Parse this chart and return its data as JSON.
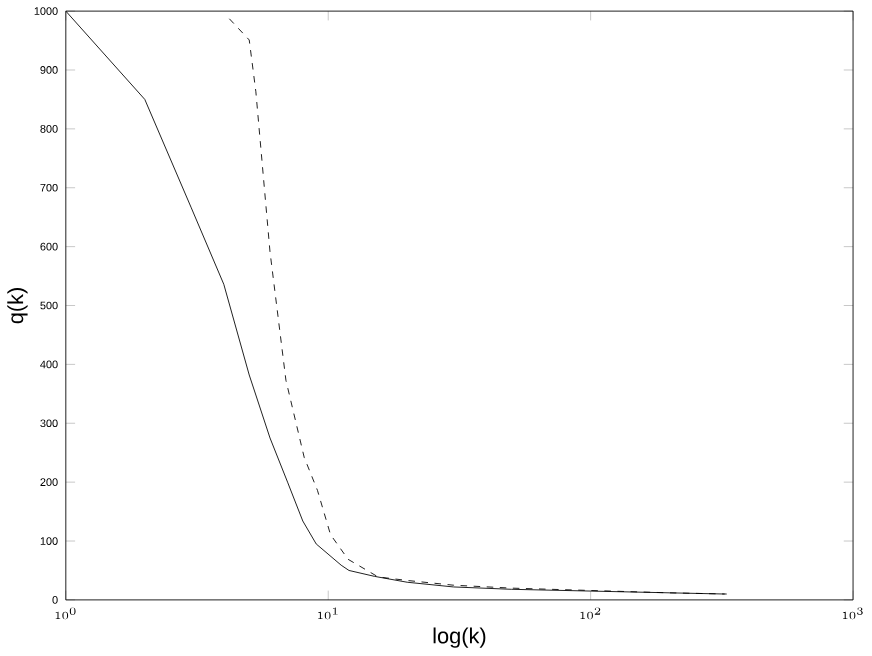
{
  "chart_data": {
    "type": "line",
    "xlabel": "log(k)",
    "ylabel": "q(k)",
    "log": "x",
    "xlim": [
      1,
      1000
    ],
    "ylim": [
      0,
      1000
    ],
    "xticks": [
      {
        "value": 1,
        "label": "10^{0}"
      },
      {
        "value": 10,
        "label": "10^{1}"
      },
      {
        "value": 100,
        "label": "10^{2}"
      },
      {
        "value": 1000,
        "label": "10^{3}"
      }
    ],
    "yticks": [
      0,
      100,
      200,
      300,
      400,
      500,
      600,
      700,
      800,
      900,
      1000
    ],
    "grid": false,
    "marker": "none",
    "series": [
      {
        "color": "#000000",
        "line_style": "solid",
        "x": [
          1,
          2,
          3,
          4,
          5,
          6,
          7,
          8,
          9,
          11.2,
          12,
          15,
          20,
          30,
          50,
          100,
          200,
          324
        ],
        "values": [
          1000,
          850,
          667,
          536,
          382,
          275,
          200,
          134,
          95,
          59,
          50,
          40,
          30,
          22,
          18,
          15,
          12,
          10
        ]
      },
      {
        "color": "#000000",
        "line_style": "dashed",
        "x": [
          4.2,
          5,
          5.3,
          6,
          6.9,
          8.1,
          9.1,
          10.2,
          11.9,
          15.5,
          20,
          30,
          50,
          100,
          200,
          330
        ],
        "values": [
          987,
          951,
          863,
          591,
          373,
          242,
          186,
          111,
          69,
          39,
          33,
          25,
          20,
          16,
          12,
          10
        ]
      }
    ]
  }
}
